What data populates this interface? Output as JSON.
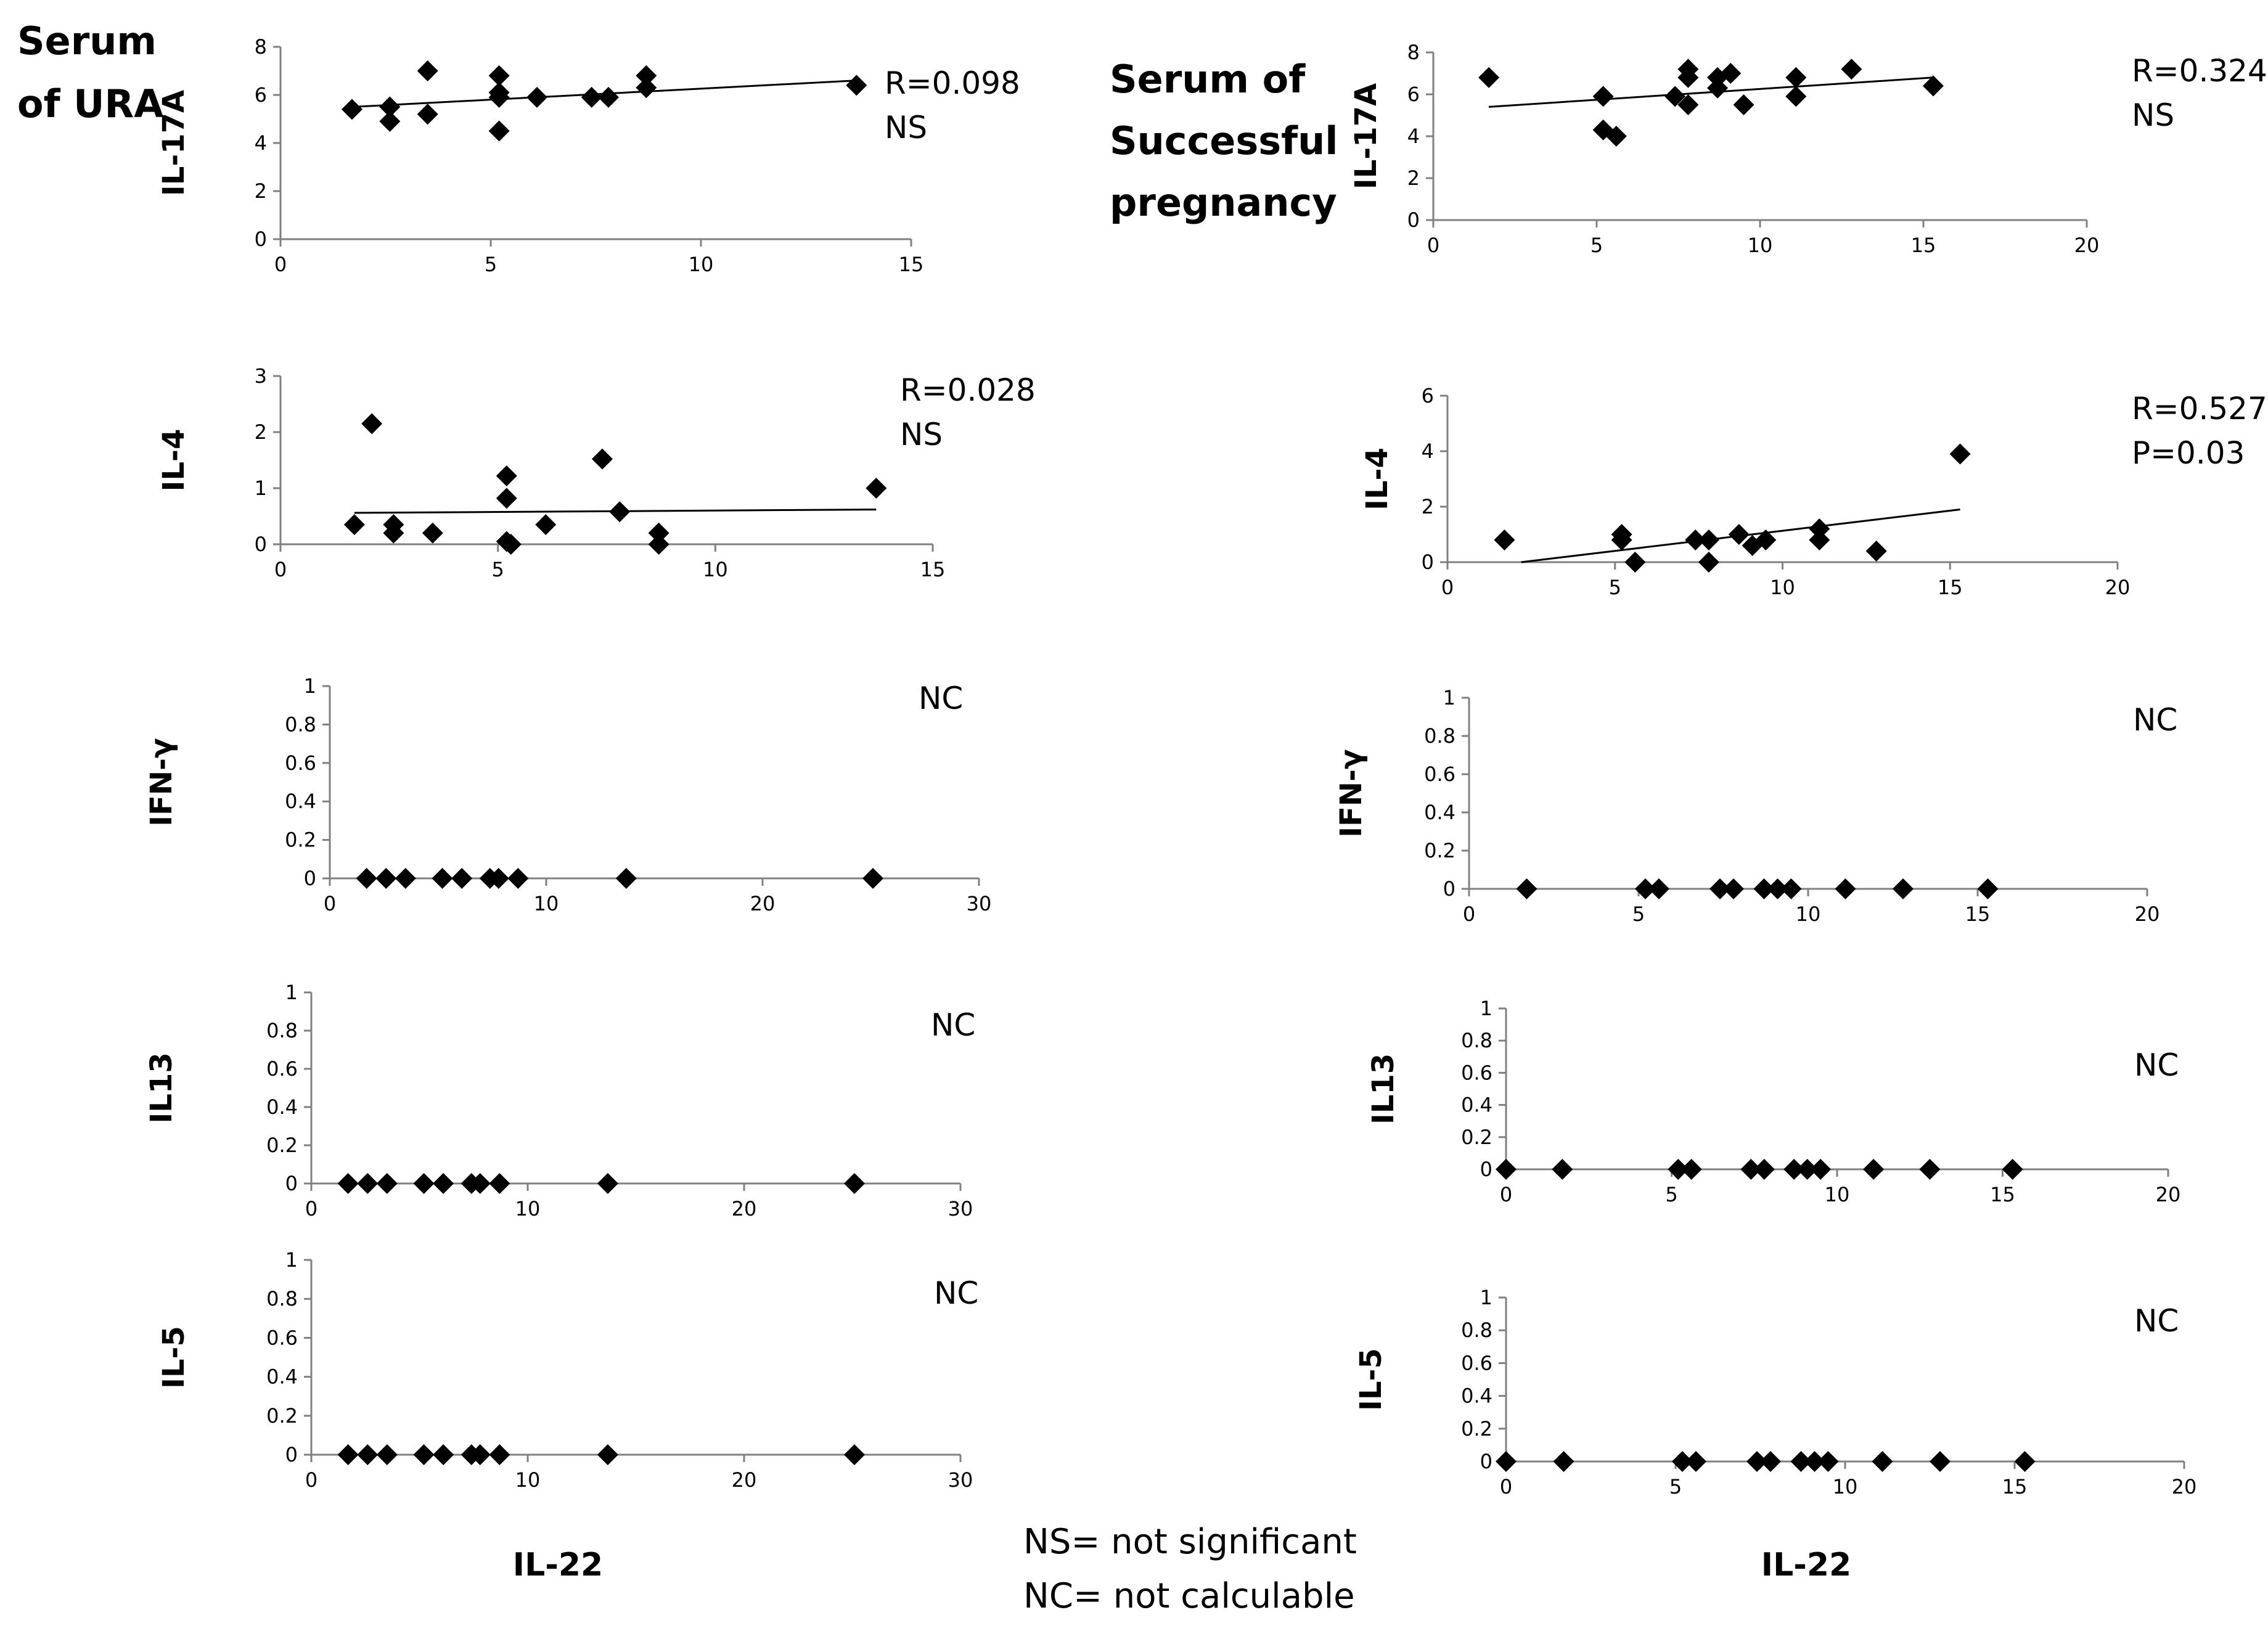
{
  "group_titles": {
    "left": [
      "Serum",
      "of URA"
    ],
    "right": [
      "Serum of",
      "Successful",
      "pregnancy"
    ]
  },
  "x_axis_labels": {
    "left": "IL-22",
    "right": "IL-22"
  },
  "footnotes": [
    "NS= not significant",
    "NC= not calculable"
  ],
  "chart_data": [
    {
      "id": "ura-il17a",
      "type": "scatter",
      "group": "Serum of URA",
      "xlabel": "",
      "ylabel": "IL-17A",
      "xlim": [
        0,
        15
      ],
      "ylim": [
        0,
        8
      ],
      "xticks": [
        0,
        5,
        10,
        15
      ],
      "yticks": [
        0,
        2,
        4,
        6,
        8
      ],
      "annotation": [
        "R=0.098",
        "NS"
      ],
      "trendline": {
        "x": [
          1.7,
          13.7
        ],
        "y": [
          5.5,
          6.6
        ]
      },
      "points": [
        [
          1.7,
          5.4
        ],
        [
          2.6,
          5.5
        ],
        [
          2.6,
          4.9
        ],
        [
          3.5,
          7.0
        ],
        [
          3.5,
          5.2
        ],
        [
          5.2,
          6.8
        ],
        [
          5.2,
          6.1
        ],
        [
          5.2,
          5.9
        ],
        [
          5.2,
          4.5
        ],
        [
          6.1,
          5.9
        ],
        [
          7.4,
          5.9
        ],
        [
          7.8,
          5.9
        ],
        [
          8.7,
          6.8
        ],
        [
          8.7,
          6.3
        ],
        [
          13.7,
          6.4
        ]
      ]
    },
    {
      "id": "ura-il4",
      "type": "scatter",
      "group": "Serum of URA",
      "xlabel": "",
      "ylabel": "IL-4",
      "xlim": [
        0,
        15
      ],
      "ylim": [
        0,
        3
      ],
      "xticks": [
        0,
        5,
        10,
        15
      ],
      "yticks": [
        0,
        1,
        2,
        3
      ],
      "annotation": [
        "R=0.028",
        "NS"
      ],
      "trendline": {
        "x": [
          1.7,
          13.7
        ],
        "y": [
          0.56,
          0.62
        ]
      },
      "points": [
        [
          1.7,
          0.35
        ],
        [
          2.1,
          2.15
        ],
        [
          2.6,
          0.35
        ],
        [
          2.6,
          0.2
        ],
        [
          3.5,
          0.2
        ],
        [
          5.2,
          1.22
        ],
        [
          5.2,
          0.82
        ],
        [
          5.2,
          0.05
        ],
        [
          5.3,
          0.0
        ],
        [
          6.1,
          0.35
        ],
        [
          7.4,
          1.52
        ],
        [
          7.8,
          0.58
        ],
        [
          8.7,
          0.2
        ],
        [
          8.7,
          0.0
        ],
        [
          13.7,
          1.0
        ]
      ]
    },
    {
      "id": "ura-ifng",
      "type": "scatter",
      "group": "Serum of URA",
      "xlabel": "",
      "ylabel": "IFN-γ",
      "xlim": [
        0,
        30
      ],
      "ylim": [
        0,
        1
      ],
      "xticks": [
        0,
        10,
        20,
        30
      ],
      "yticks": [
        0,
        0.2,
        0.4,
        0.6,
        0.8,
        1
      ],
      "annotation": [
        "NC"
      ],
      "points": [
        [
          1.7,
          0
        ],
        [
          2.6,
          0
        ],
        [
          3.5,
          0
        ],
        [
          5.2,
          0
        ],
        [
          6.1,
          0
        ],
        [
          7.4,
          0
        ],
        [
          7.8,
          0
        ],
        [
          8.7,
          0
        ],
        [
          13.7,
          0
        ],
        [
          25.1,
          0
        ]
      ]
    },
    {
      "id": "ura-il13",
      "type": "scatter",
      "group": "Serum of URA",
      "xlabel": "",
      "ylabel": "IL13",
      "xlim": [
        0,
        30
      ],
      "ylim": [
        0,
        1
      ],
      "xticks": [
        0,
        10,
        20,
        30
      ],
      "yticks": [
        0,
        0.2,
        0.4,
        0.6,
        0.8,
        1
      ],
      "annotation": [
        "NC"
      ],
      "points": [
        [
          1.7,
          0
        ],
        [
          2.6,
          0
        ],
        [
          3.5,
          0
        ],
        [
          5.2,
          0
        ],
        [
          6.1,
          0
        ],
        [
          7.4,
          0
        ],
        [
          7.8,
          0
        ],
        [
          8.7,
          0
        ],
        [
          13.7,
          0
        ],
        [
          25.1,
          0
        ]
      ]
    },
    {
      "id": "ura-il5",
      "type": "scatter",
      "group": "Serum of URA",
      "xlabel": "IL-22",
      "ylabel": "IL-5",
      "xlim": [
        0,
        30
      ],
      "ylim": [
        0,
        1
      ],
      "xticks": [
        0,
        10,
        20,
        30
      ],
      "yticks": [
        0,
        0.2,
        0.4,
        0.6,
        0.8,
        1
      ],
      "annotation": [
        "NC"
      ],
      "points": [
        [
          1.7,
          0
        ],
        [
          2.6,
          0
        ],
        [
          3.5,
          0
        ],
        [
          5.2,
          0
        ],
        [
          6.1,
          0
        ],
        [
          7.4,
          0
        ],
        [
          7.8,
          0
        ],
        [
          8.7,
          0
        ],
        [
          13.7,
          0
        ],
        [
          25.1,
          0
        ]
      ]
    },
    {
      "id": "sp-il17a",
      "type": "scatter",
      "group": "Serum of Successful pregnancy",
      "xlabel": "",
      "ylabel": "IL-17A",
      "xlim": [
        0,
        20
      ],
      "ylim": [
        0,
        8
      ],
      "xticks": [
        0,
        5,
        10,
        15,
        20
      ],
      "yticks": [
        0,
        2,
        4,
        6,
        8
      ],
      "annotation": [
        "R=0.324",
        "NS"
      ],
      "trendline": {
        "x": [
          1.7,
          15.3
        ],
        "y": [
          5.4,
          6.8
        ]
      },
      "points": [
        [
          1.7,
          6.8
        ],
        [
          5.2,
          5.9
        ],
        [
          5.2,
          4.3
        ],
        [
          5.6,
          4.0
        ],
        [
          7.4,
          5.9
        ],
        [
          7.8,
          7.2
        ],
        [
          7.8,
          6.8
        ],
        [
          7.8,
          5.5
        ],
        [
          8.7,
          6.8
        ],
        [
          8.7,
          6.3
        ],
        [
          9.1,
          7.0
        ],
        [
          9.5,
          5.5
        ],
        [
          11.1,
          6.8
        ],
        [
          11.1,
          5.9
        ],
        [
          12.8,
          7.2
        ],
        [
          15.3,
          6.4
        ]
      ]
    },
    {
      "id": "sp-il4",
      "type": "scatter",
      "group": "Serum of Successful pregnancy",
      "xlabel": "",
      "ylabel": "IL-4",
      "xlim": [
        0,
        20
      ],
      "ylim": [
        0,
        6
      ],
      "xticks": [
        0,
        5,
        10,
        15,
        20
      ],
      "yticks": [
        0,
        2,
        4,
        6
      ],
      "annotation": [
        "R=0.527",
        "P=0.03"
      ],
      "trendline": {
        "x": [
          2.2,
          15.3
        ],
        "y": [
          0,
          1.9
        ]
      },
      "points": [
        [
          1.7,
          0.8
        ],
        [
          5.2,
          1.0
        ],
        [
          5.2,
          0.8
        ],
        [
          5.6,
          0.0
        ],
        [
          7.4,
          0.8
        ],
        [
          7.8,
          0.8
        ],
        [
          7.8,
          0.0
        ],
        [
          8.7,
          1.0
        ],
        [
          9.1,
          0.6
        ],
        [
          9.5,
          0.8
        ],
        [
          11.1,
          1.2
        ],
        [
          11.1,
          0.8
        ],
        [
          12.8,
          0.4
        ],
        [
          15.3,
          3.9
        ]
      ]
    },
    {
      "id": "sp-ifng",
      "type": "scatter",
      "group": "Serum of Successful pregnancy",
      "xlabel": "",
      "ylabel": "IFN-γ",
      "xlim": [
        0,
        20
      ],
      "ylim": [
        0,
        1
      ],
      "xticks": [
        0,
        5,
        10,
        15,
        20
      ],
      "yticks": [
        0,
        0.2,
        0.4,
        0.6,
        0.8,
        1
      ],
      "annotation": [
        "NC"
      ],
      "points": [
        [
          1.7,
          0
        ],
        [
          5.2,
          0
        ],
        [
          5.6,
          0
        ],
        [
          7.4,
          0
        ],
        [
          7.8,
          0
        ],
        [
          8.7,
          0
        ],
        [
          9.1,
          0
        ],
        [
          9.5,
          0
        ],
        [
          11.1,
          0
        ],
        [
          12.8,
          0
        ],
        [
          15.3,
          0
        ]
      ]
    },
    {
      "id": "sp-il13",
      "type": "scatter",
      "group": "Serum of Successful pregnancy",
      "xlabel": "",
      "ylabel": "IL13",
      "xlim": [
        0,
        20
      ],
      "ylim": [
        0,
        1
      ],
      "xticks": [
        0,
        5,
        10,
        15,
        20
      ],
      "yticks": [
        0,
        0.2,
        0.4,
        0.6,
        0.8,
        1
      ],
      "annotation": [
        "NC"
      ],
      "points": [
        [
          0,
          0
        ],
        [
          1.7,
          0
        ],
        [
          5.2,
          0
        ],
        [
          5.6,
          0
        ],
        [
          7.4,
          0
        ],
        [
          7.8,
          0
        ],
        [
          8.7,
          0
        ],
        [
          9.1,
          0
        ],
        [
          9.5,
          0
        ],
        [
          11.1,
          0
        ],
        [
          12.8,
          0
        ],
        [
          15.3,
          0
        ]
      ]
    },
    {
      "id": "sp-il5",
      "type": "scatter",
      "group": "Serum of Successful pregnancy",
      "xlabel": "IL-22",
      "ylabel": "IL-5",
      "xlim": [
        0,
        20
      ],
      "ylim": [
        0,
        1
      ],
      "xticks": [
        0,
        5,
        10,
        15,
        20
      ],
      "yticks": [
        0,
        0.2,
        0.4,
        0.6,
        0.8,
        1
      ],
      "annotation": [
        "NC"
      ],
      "points": [
        [
          0,
          0
        ],
        [
          1.7,
          0
        ],
        [
          5.2,
          0
        ],
        [
          5.6,
          0
        ],
        [
          7.4,
          0
        ],
        [
          7.8,
          0
        ],
        [
          8.7,
          0
        ],
        [
          9.1,
          0
        ],
        [
          9.5,
          0
        ],
        [
          11.1,
          0
        ],
        [
          12.8,
          0
        ],
        [
          15.3,
          0
        ]
      ]
    }
  ]
}
